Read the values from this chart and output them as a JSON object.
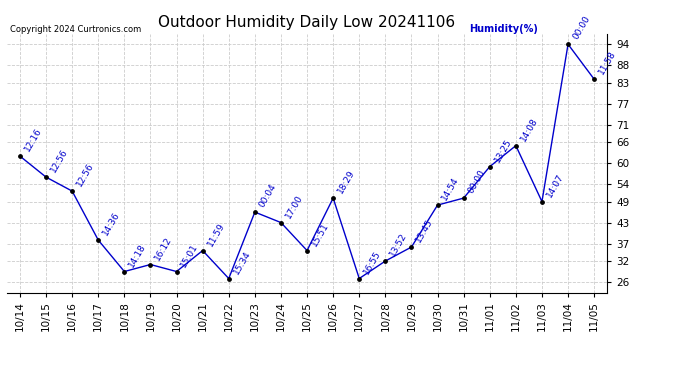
{
  "title": "Outdoor Humidity Daily Low 20241106",
  "copyright": "Copyright 2024 Curtronics.com",
  "legend_label": "Humidity(%)",
  "x_labels": [
    "10/14",
    "10/15",
    "10/16",
    "10/17",
    "10/18",
    "10/19",
    "10/20",
    "10/21",
    "10/22",
    "10/23",
    "10/24",
    "10/25",
    "10/26",
    "10/27",
    "10/28",
    "10/29",
    "10/30",
    "10/31",
    "11/01",
    "11/02",
    "11/03",
    "11/04",
    "11/05"
  ],
  "y_values": [
    62,
    56,
    52,
    38,
    29,
    31,
    29,
    35,
    27,
    46,
    43,
    35,
    50,
    27,
    32,
    36,
    48,
    50,
    59,
    65,
    49,
    94,
    84
  ],
  "point_labels": [
    "12:16",
    "12:56",
    "12:56",
    "14:36",
    "14:18",
    "16:12",
    "15:01",
    "11:59",
    "15:34",
    "00:04",
    "17:00",
    "15:51",
    "18:29",
    "16:55",
    "13:52",
    "13:45",
    "14:54",
    "00:00",
    "13:25",
    "14:08",
    "14:07",
    "00:00",
    "11:58"
  ],
  "line_color": "#0000cc",
  "marker_color": "#000000",
  "background_color": "#ffffff",
  "grid_color": "#cccccc",
  "text_color": "#0000cc",
  "title_color": "#000000",
  "y_ticks": [
    26,
    32,
    37,
    43,
    49,
    54,
    60,
    66,
    71,
    77,
    83,
    88,
    94
  ],
  "y_min": 23,
  "y_max": 97,
  "title_fontsize": 11,
  "label_fontsize": 6.5,
  "axis_fontsize": 7.5
}
